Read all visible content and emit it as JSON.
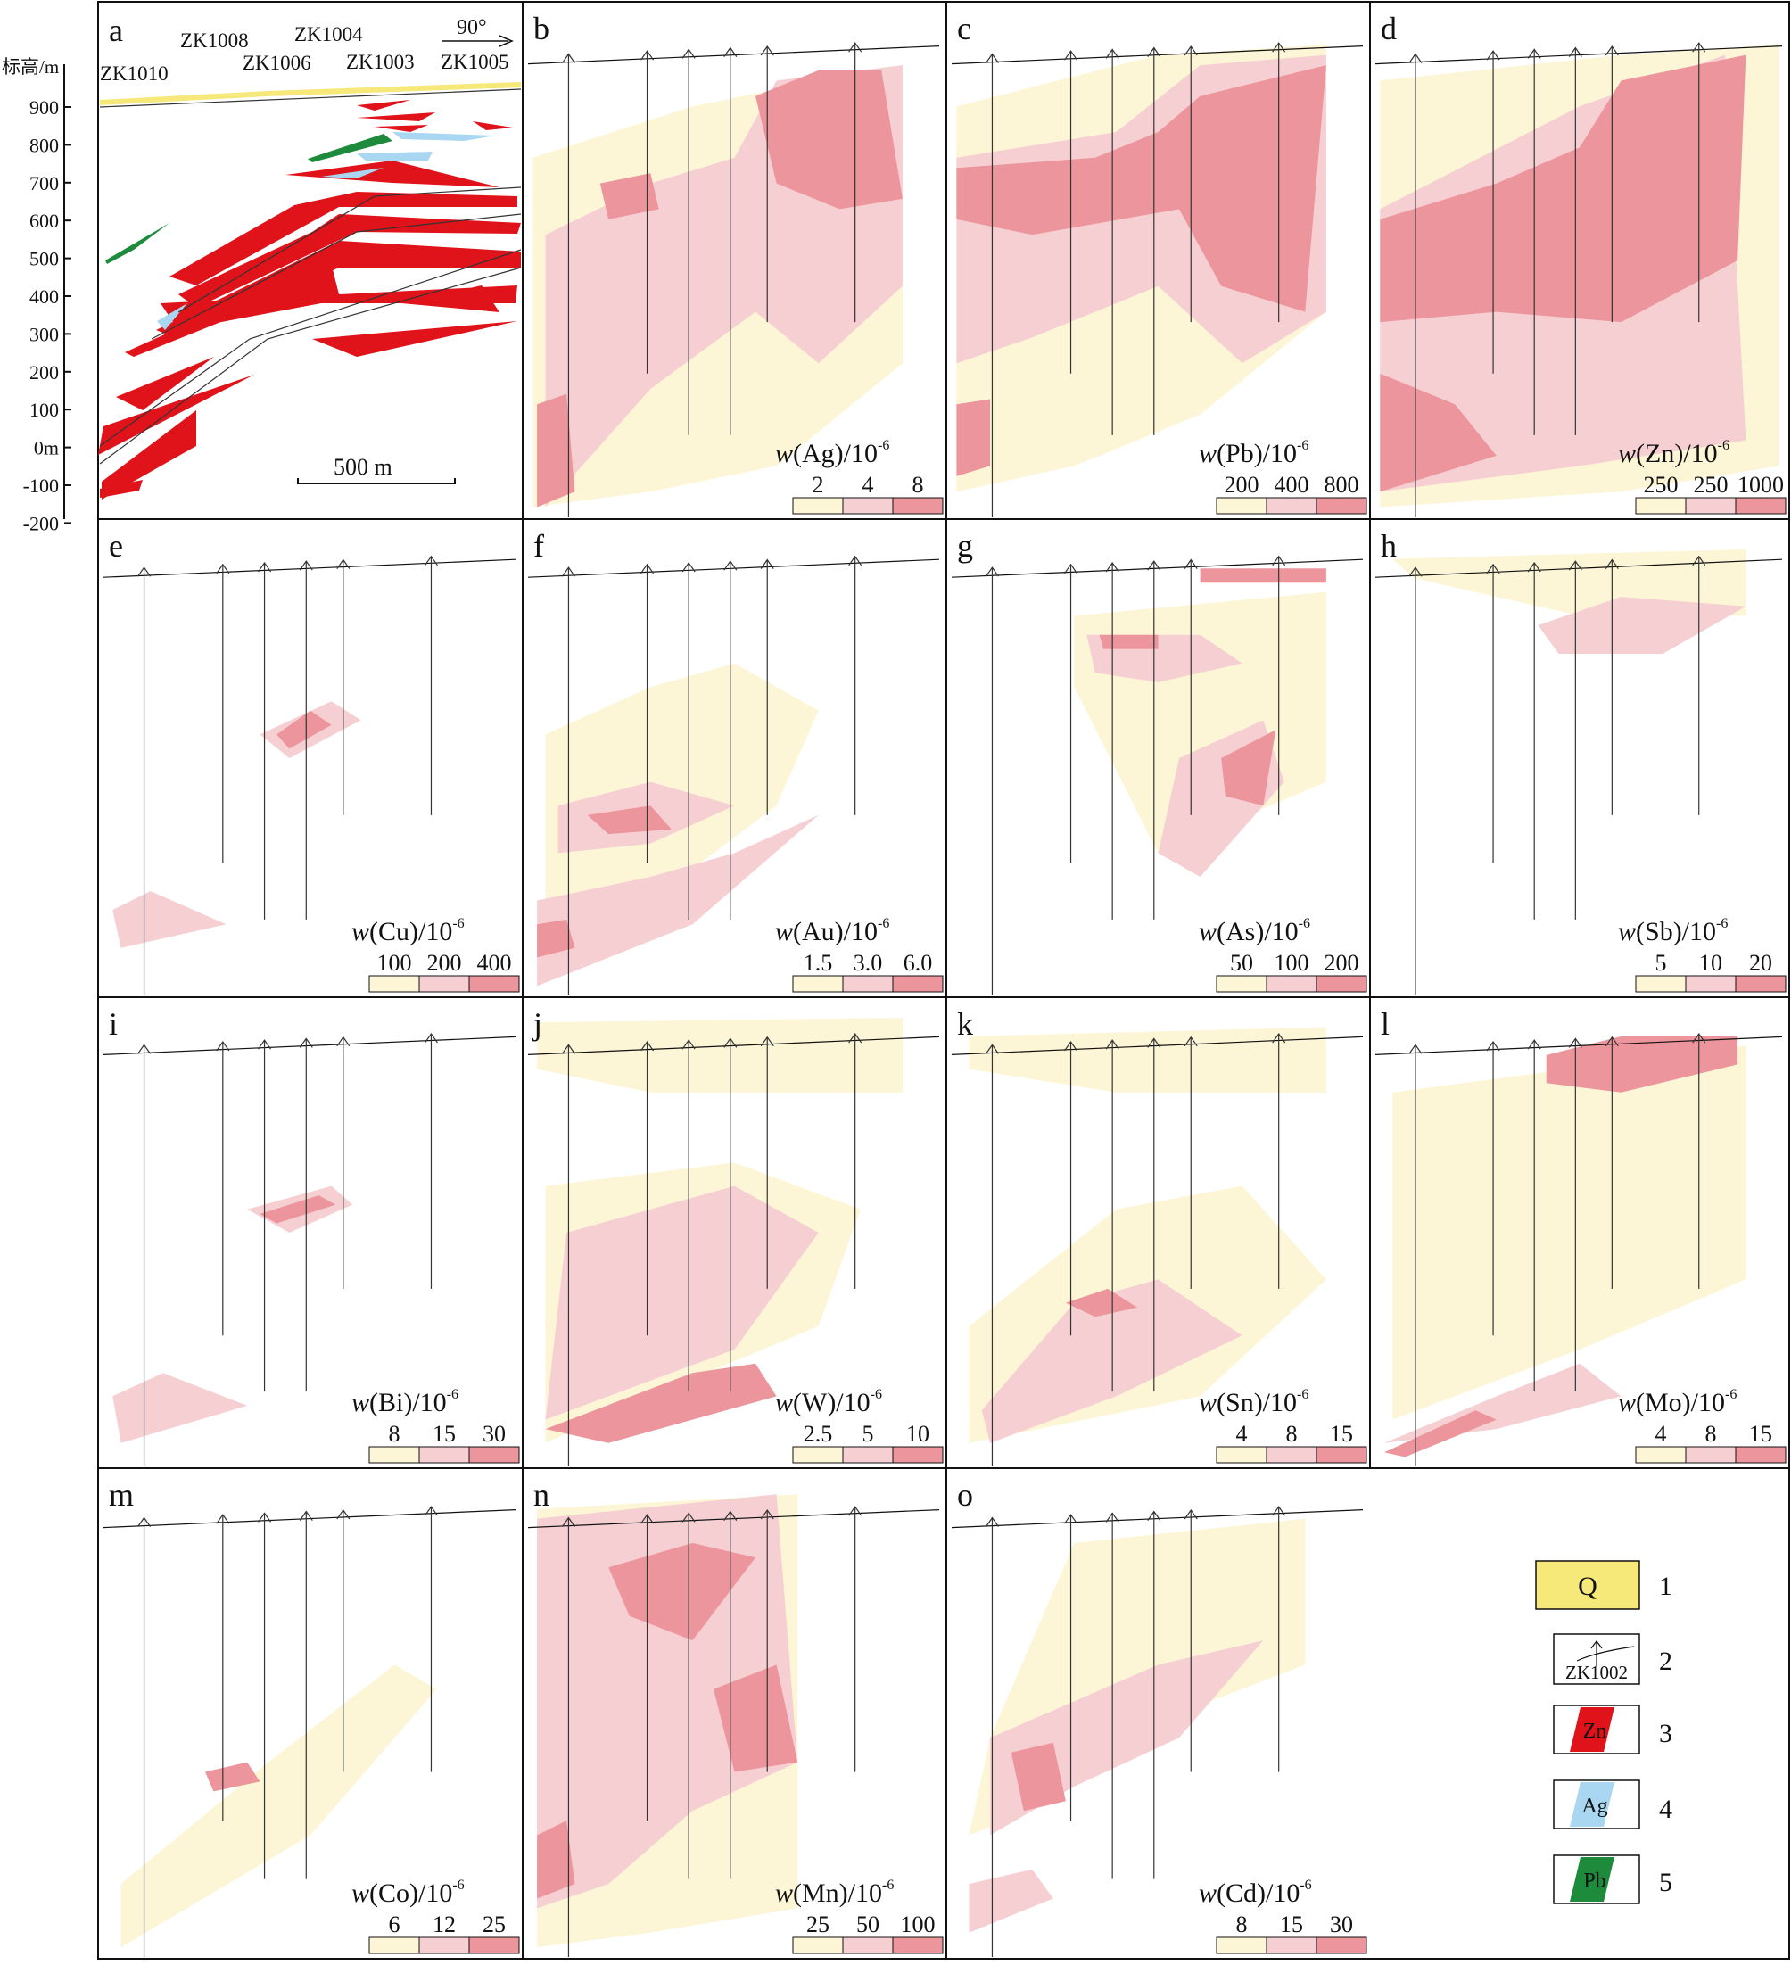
{
  "axis": {
    "title": "标高/m",
    "ticks": [
      "900",
      "800",
      "700",
      "600",
      "500",
      "400",
      "300",
      "200",
      "100",
      "0m",
      "-100",
      "-200"
    ]
  },
  "scale_bar": "500 m",
  "direction": "90°",
  "boreholes": [
    "ZK1010",
    "ZK1008",
    "ZK1006",
    "ZK1004",
    "ZK1003",
    "ZK1005"
  ],
  "panels": [
    {
      "id": "a"
    },
    {
      "id": "b",
      "element": "Ag",
      "thresholds": [
        "2",
        "4",
        "8"
      ]
    },
    {
      "id": "c",
      "element": "Pb",
      "thresholds": [
        "200",
        "400",
        "800"
      ]
    },
    {
      "id": "d",
      "element": "Zn",
      "thresholds": [
        "250",
        "250",
        "1000"
      ]
    },
    {
      "id": "e",
      "element": "Cu",
      "thresholds": [
        "100",
        "200",
        "400"
      ]
    },
    {
      "id": "f",
      "element": "Au",
      "thresholds": [
        "1.5",
        "3.0",
        "6.0"
      ]
    },
    {
      "id": "g",
      "element": "As",
      "thresholds": [
        "50",
        "100",
        "200"
      ]
    },
    {
      "id": "h",
      "element": "Sb",
      "thresholds": [
        "5",
        "10",
        "20"
      ]
    },
    {
      "id": "i",
      "element": "Bi",
      "thresholds": [
        "8",
        "15",
        "30"
      ]
    },
    {
      "id": "j",
      "element": "W",
      "thresholds": [
        "2.5",
        "5",
        "10"
      ]
    },
    {
      "id": "k",
      "element": "Sn",
      "thresholds": [
        "4",
        "8",
        "15"
      ]
    },
    {
      "id": "l",
      "element": "Mo",
      "thresholds": [
        "4",
        "8",
        "15"
      ]
    },
    {
      "id": "m",
      "element": "Co",
      "thresholds": [
        "6",
        "12",
        "25"
      ]
    },
    {
      "id": "n",
      "element": "Mn",
      "thresholds": [
        "25",
        "50",
        "100"
      ]
    },
    {
      "id": "o",
      "element": "Cd",
      "thresholds": [
        "8",
        "15",
        "30"
      ]
    }
  ],
  "unit_prefix": "w",
  "unit_suffix": "/10",
  "unit_exp": "-6",
  "legend": [
    {
      "num": "1",
      "label": "Q",
      "color": "#f7e87a"
    },
    {
      "num": "2",
      "label": "ZK1002"
    },
    {
      "num": "3",
      "label": "Zn",
      "color": "#e0131a"
    },
    {
      "num": "4",
      "label": "Ag",
      "color": "#a9d7f2"
    },
    {
      "num": "5",
      "label": "Pb",
      "color": "#1d8a3c"
    }
  ],
  "colors": {
    "low": "#fdf6d6",
    "mid": "#f6cfd3",
    "high": "#ec959c",
    "zn": "#e0131a",
    "ag": "#a9d7f2",
    "pb": "#1d8a3c",
    "q": "#f7e87a"
  }
}
